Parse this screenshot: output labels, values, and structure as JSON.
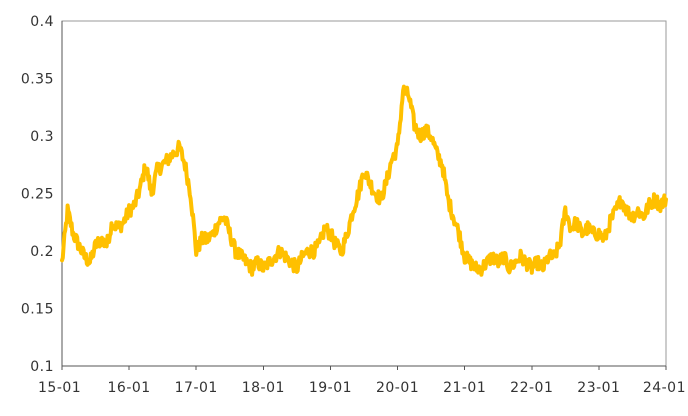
{
  "chart_data": {
    "type": "line",
    "title": "",
    "xlabel": "",
    "ylabel": "",
    "ylim": [
      0.1,
      0.4
    ],
    "xlim": [
      "2015-01",
      "2024-01"
    ],
    "y_ticks": [
      "0.1",
      "0.15",
      "0.2",
      "0.25",
      "0.3",
      "0.35",
      "0.4"
    ],
    "x_ticks": [
      "15-01",
      "16-01",
      "17-01",
      "18-01",
      "19-01",
      "20-01",
      "21-01",
      "22-01",
      "23-01",
      "24-01"
    ],
    "grid": false,
    "legend": "none",
    "series": [
      {
        "color": "#FFC000",
        "points": [
          [
            "2015-01",
            0.19
          ],
          [
            "2015-02",
            0.235
          ],
          [
            "2015-03",
            0.215
          ],
          [
            "2015-04",
            0.205
          ],
          [
            "2015-05",
            0.195
          ],
          [
            "2015-06",
            0.19
          ],
          [
            "2015-07",
            0.205
          ],
          [
            "2015-08",
            0.21
          ],
          [
            "2015-09",
            0.205
          ],
          [
            "2015-10",
            0.225
          ],
          [
            "2015-11",
            0.22
          ],
          [
            "2015-12",
            0.225
          ],
          [
            "2016-01",
            0.235
          ],
          [
            "2016-02",
            0.24
          ],
          [
            "2016-03",
            0.255
          ],
          [
            "2016-04",
            0.275
          ],
          [
            "2016-05",
            0.25
          ],
          [
            "2016-06",
            0.27
          ],
          [
            "2016-07",
            0.275
          ],
          [
            "2016-08",
            0.28
          ],
          [
            "2016-09",
            0.285
          ],
          [
            "2016-10",
            0.29
          ],
          [
            "2016-11",
            0.275
          ],
          [
            "2016-12",
            0.25
          ],
          [
            "2017-01",
            0.2
          ],
          [
            "2017-02",
            0.21
          ],
          [
            "2017-03",
            0.21
          ],
          [
            "2017-04",
            0.215
          ],
          [
            "2017-05",
            0.225
          ],
          [
            "2017-06",
            0.23
          ],
          [
            "2017-07",
            0.215
          ],
          [
            "2017-08",
            0.2
          ],
          [
            "2017-09",
            0.195
          ],
          [
            "2017-10",
            0.19
          ],
          [
            "2017-11",
            0.185
          ],
          [
            "2017-12",
            0.19
          ],
          [
            "2018-01",
            0.185
          ],
          [
            "2018-02",
            0.19
          ],
          [
            "2018-03",
            0.195
          ],
          [
            "2018-04",
            0.2
          ],
          [
            "2018-05",
            0.195
          ],
          [
            "2018-06",
            0.19
          ],
          [
            "2018-07",
            0.185
          ],
          [
            "2018-08",
            0.195
          ],
          [
            "2018-09",
            0.2
          ],
          [
            "2018-10",
            0.2
          ],
          [
            "2018-11",
            0.205
          ],
          [
            "2018-12",
            0.22
          ],
          [
            "2019-01",
            0.215
          ],
          [
            "2019-02",
            0.205
          ],
          [
            "2019-03",
            0.2
          ],
          [
            "2019-04",
            0.215
          ],
          [
            "2019-05",
            0.235
          ],
          [
            "2019-06",
            0.25
          ],
          [
            "2019-07",
            0.27
          ],
          [
            "2019-08",
            0.26
          ],
          [
            "2019-09",
            0.25
          ],
          [
            "2019-10",
            0.245
          ],
          [
            "2019-11",
            0.26
          ],
          [
            "2019-12",
            0.28
          ],
          [
            "2020-01",
            0.29
          ],
          [
            "2020-02",
            0.34
          ],
          [
            "2020-03",
            0.335
          ],
          [
            "2020-04",
            0.31
          ],
          [
            "2020-05",
            0.3
          ],
          [
            "2020-06",
            0.305
          ],
          [
            "2020-07",
            0.3
          ],
          [
            "2020-08",
            0.285
          ],
          [
            "2020-09",
            0.275
          ],
          [
            "2020-10",
            0.245
          ],
          [
            "2020-11",
            0.23
          ],
          [
            "2020-12",
            0.215
          ],
          [
            "2021-01",
            0.195
          ],
          [
            "2021-02",
            0.19
          ],
          [
            "2021-03",
            0.185
          ],
          [
            "2021-04",
            0.185
          ],
          [
            "2021-05",
            0.19
          ],
          [
            "2021-06",
            0.195
          ],
          [
            "2021-07",
            0.19
          ],
          [
            "2021-08",
            0.195
          ],
          [
            "2021-09",
            0.185
          ],
          [
            "2021-10",
            0.19
          ],
          [
            "2021-11",
            0.195
          ],
          [
            "2021-12",
            0.19
          ],
          [
            "2022-01",
            0.185
          ],
          [
            "2022-02",
            0.19
          ],
          [
            "2022-03",
            0.185
          ],
          [
            "2022-04",
            0.195
          ],
          [
            "2022-05",
            0.195
          ],
          [
            "2022-06",
            0.205
          ],
          [
            "2022-07",
            0.235
          ],
          [
            "2022-08",
            0.22
          ],
          [
            "2022-09",
            0.225
          ],
          [
            "2022-10",
            0.215
          ],
          [
            "2022-11",
            0.22
          ],
          [
            "2022-12",
            0.215
          ],
          [
            "2023-01",
            0.215
          ],
          [
            "2023-02",
            0.21
          ],
          [
            "2023-03",
            0.225
          ],
          [
            "2023-04",
            0.235
          ],
          [
            "2023-05",
            0.245
          ],
          [
            "2023-06",
            0.235
          ],
          [
            "2023-07",
            0.23
          ],
          [
            "2023-08",
            0.235
          ],
          [
            "2023-09",
            0.23
          ],
          [
            "2023-10",
            0.24
          ],
          [
            "2023-11",
            0.245
          ],
          [
            "2023-12",
            0.24
          ],
          [
            "2024-01",
            0.245
          ]
        ]
      }
    ]
  }
}
